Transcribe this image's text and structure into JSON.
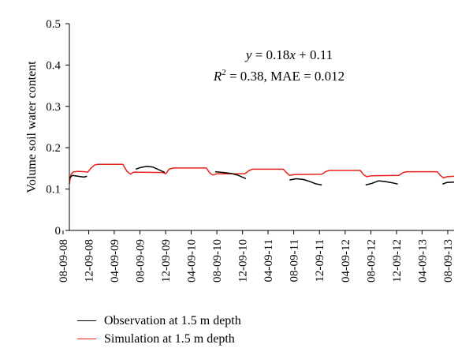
{
  "chart_data": {
    "type": "line",
    "title": "",
    "xlabel": "",
    "ylabel": "Volume soil water content",
    "ylim": [
      0,
      0.5
    ],
    "yticks": [
      "0",
      "0.1",
      "0.2",
      "0.3",
      "0.4",
      "0.5"
    ],
    "xlim": [
      "2008-09-08",
      "2013-09-08"
    ],
    "xtick_labels": [
      "08-09-08",
      "12-09-08",
      "04-09-09",
      "08-09-09",
      "12-09-09",
      "04-09-10",
      "08-09-10",
      "12-09-10",
      "04-09-11",
      "08-09-11",
      "12-09-11",
      "04-09-12",
      "08-09-12",
      "12-09-12",
      "04-09-13",
      "08-09-13"
    ],
    "grid": false,
    "legend_position": "bottom",
    "annotations": {
      "equation": {
        "y_italic": "y",
        "rest": " = 0.18",
        "x_italic": "x",
        "tail": " + 0.11"
      },
      "stats": {
        "r": "R",
        "sup": "2",
        "rest": " = 0.38, MAE = 0.012"
      }
    },
    "series": [
      {
        "name": "Observation at 1.5 m depth",
        "color": "#000000",
        "segments": [
          [
            [
              "2008-09-08",
              0.127
            ],
            [
              "2008-09-23",
              0.133
            ],
            [
              "2008-10-20",
              0.131
            ],
            [
              "2008-11-15",
              0.129
            ],
            [
              "2008-12-01",
              0.131
            ]
          ],
          [
            [
              "2009-07-20",
              0.148
            ],
            [
              "2009-08-10",
              0.152
            ],
            [
              "2009-09-10",
              0.155
            ],
            [
              "2009-10-10",
              0.153
            ],
            [
              "2009-11-10",
              0.146
            ],
            [
              "2009-12-05",
              0.14
            ]
          ],
          [
            [
              "2010-08-01",
              0.142
            ],
            [
              "2010-09-10",
              0.14
            ],
            [
              "2010-10-15",
              0.138
            ],
            [
              "2010-11-20",
              0.133
            ],
            [
              "2010-12-25",
              0.125
            ]
          ],
          [
            [
              "2011-07-20",
              0.122
            ],
            [
              "2011-08-20",
              0.125
            ],
            [
              "2011-09-25",
              0.123
            ],
            [
              "2011-10-20",
              0.119
            ],
            [
              "2011-11-20",
              0.113
            ],
            [
              "2011-12-20",
              0.11
            ]
          ],
          [
            [
              "2012-07-15",
              0.11
            ],
            [
              "2012-08-15",
              0.114
            ],
            [
              "2012-09-15",
              0.12
            ],
            [
              "2012-10-20",
              0.118
            ],
            [
              "2012-11-20",
              0.115
            ],
            [
              "2012-12-15",
              0.112
            ]
          ],
          [
            [
              "2013-07-15",
              0.112
            ],
            [
              "2013-08-05",
              0.116
            ],
            [
              "2013-09-08",
              0.117
            ]
          ]
        ]
      },
      {
        "name": "Simulation at 1.5 m depth",
        "color": "#e8211a",
        "segments": [
          [
            [
              "2008-09-08",
              0.112
            ],
            [
              "2008-09-15",
              0.135
            ],
            [
              "2008-09-25",
              0.141
            ],
            [
              "2008-10-15",
              0.143
            ],
            [
              "2008-11-20",
              0.142
            ],
            [
              "2008-12-05",
              0.141
            ],
            [
              "2008-12-18",
              0.15
            ],
            [
              "2009-01-05",
              0.158
            ],
            [
              "2009-01-20",
              0.16
            ],
            [
              "2009-05-20",
              0.16
            ],
            [
              "2009-06-08",
              0.143
            ],
            [
              "2009-06-25",
              0.136
            ],
            [
              "2009-07-10",
              0.141
            ],
            [
              "2009-11-25",
              0.14
            ],
            [
              "2009-12-10",
              0.137
            ],
            [
              "2009-12-25",
              0.148
            ],
            [
              "2010-01-15",
              0.151
            ],
            [
              "2010-06-20",
              0.151
            ],
            [
              "2010-07-05",
              0.14
            ],
            [
              "2010-07-20",
              0.134
            ],
            [
              "2010-08-10",
              0.137
            ],
            [
              "2010-12-20",
              0.137
            ],
            [
              "2011-01-10",
              0.145
            ],
            [
              "2011-01-25",
              0.148
            ],
            [
              "2011-06-20",
              0.148
            ],
            [
              "2011-07-05",
              0.14
            ],
            [
              "2011-07-20",
              0.133
            ],
            [
              "2011-08-10",
              0.135
            ],
            [
              "2011-12-20",
              0.136
            ],
            [
              "2012-01-10",
              0.143
            ],
            [
              "2012-01-25",
              0.145
            ],
            [
              "2012-06-20",
              0.145
            ],
            [
              "2012-07-05",
              0.135
            ],
            [
              "2012-07-20",
              0.13
            ],
            [
              "2012-08-10",
              0.132
            ],
            [
              "2012-12-20",
              0.133
            ],
            [
              "2013-01-10",
              0.14
            ],
            [
              "2013-01-25",
              0.142
            ],
            [
              "2013-06-20",
              0.142
            ],
            [
              "2013-07-05",
              0.133
            ],
            [
              "2013-07-20",
              0.127
            ],
            [
              "2013-08-05",
              0.13
            ],
            [
              "2013-09-08",
              0.131
            ]
          ]
        ]
      }
    ]
  }
}
